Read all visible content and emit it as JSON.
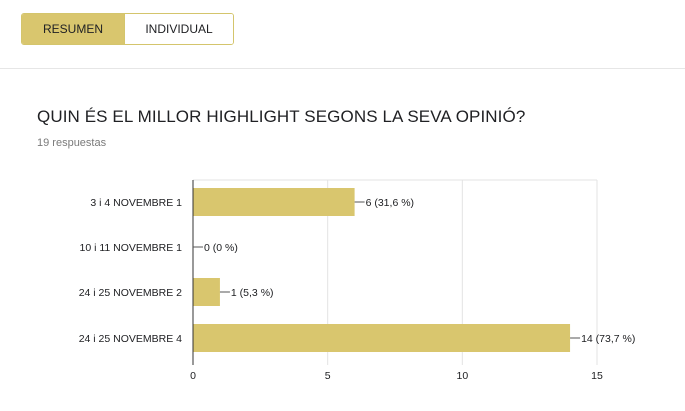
{
  "tabs": {
    "summary": "RESUMEN",
    "individual": "INDIVIDUAL"
  },
  "question": {
    "title": "QUIN ÉS EL MILLOR HIGHLIGHT SEGONS LA SEVA OPINIÓ?",
    "responses": "19 respuestas"
  },
  "colors": {
    "bar": "#d9c66e",
    "accent_border": "#d4c56c"
  },
  "chart_data": {
    "type": "bar",
    "orientation": "horizontal",
    "categories": [
      "3 i 4 NOVEMBRE 1",
      "10 i 11 NOVEMBRE 1",
      "24 i 25 NOVEMBRE 2",
      "24 i 25 NOVEMBRE 4"
    ],
    "values": [
      6,
      0,
      1,
      14
    ],
    "value_labels": [
      "6 (31,6 %)",
      "0 (0 %)",
      "1 (5,3 %)",
      "14 (73,7 %)"
    ],
    "xlim": [
      0,
      15
    ],
    "xticks": [
      0,
      5,
      10,
      15
    ],
    "grid": true
  }
}
